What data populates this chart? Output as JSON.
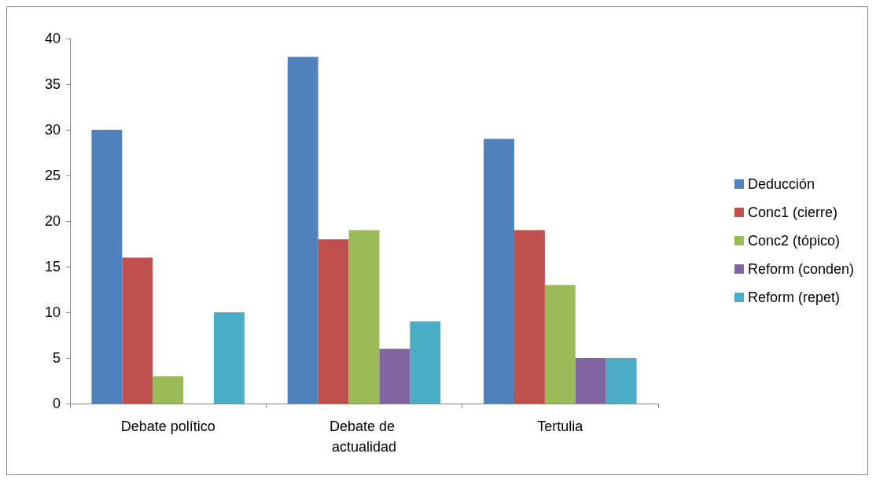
{
  "chart_data": {
    "type": "bar",
    "categories": [
      "Debate político",
      "Debate de actualidad",
      "Tertulia"
    ],
    "series": [
      {
        "name": "Deducción",
        "color": "#4f81bd",
        "values": [
          30,
          38,
          29
        ]
      },
      {
        "name": "Conc1 (cierre)",
        "color": "#c0504d",
        "values": [
          16,
          18,
          19
        ]
      },
      {
        "name": "Conc2 (tópico)",
        "color": "#9bbb59",
        "values": [
          3,
          19,
          13
        ]
      },
      {
        "name": "Reform (conden)",
        "color": "#8064a2",
        "values": [
          null,
          6,
          5
        ]
      },
      {
        "name": "Reform (repet)",
        "color": "#4bacc6",
        "values": [
          10,
          9,
          5
        ]
      }
    ],
    "ylim": [
      0,
      40
    ],
    "yticks": [
      0,
      5,
      10,
      15,
      20,
      25,
      30,
      35,
      40
    ],
    "grid": false,
    "legend": "right"
  }
}
